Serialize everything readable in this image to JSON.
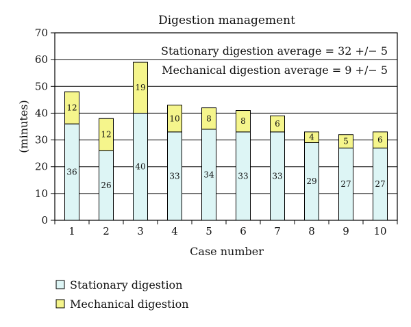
{
  "chart_data": {
    "type": "bar",
    "stacked": true,
    "title": "Digestion management",
    "xlabel": "Case number",
    "ylabel": "(minutes)",
    "ylim": [
      0,
      70
    ],
    "yticks": [
      0,
      10,
      20,
      30,
      40,
      50,
      60,
      70
    ],
    "grid": true,
    "legend_position": "bottom-left",
    "categories": [
      "1",
      "2",
      "3",
      "4",
      "5",
      "6",
      "7",
      "8",
      "9",
      "10"
    ],
    "series": [
      {
        "name": "Stationary digestion",
        "color": "#ddf5f5",
        "values": [
          36,
          26,
          40,
          33,
          34,
          33,
          33,
          29,
          27,
          27
        ]
      },
      {
        "name": "Mechanical digestion",
        "color": "#f5f58c",
        "values": [
          12,
          12,
          19,
          10,
          8,
          8,
          6,
          4,
          5,
          6
        ]
      }
    ],
    "annotations": [
      "Stationary digestion average = 32 +/− 5",
      "Mechanical digestion average = 9 +/− 5"
    ]
  }
}
